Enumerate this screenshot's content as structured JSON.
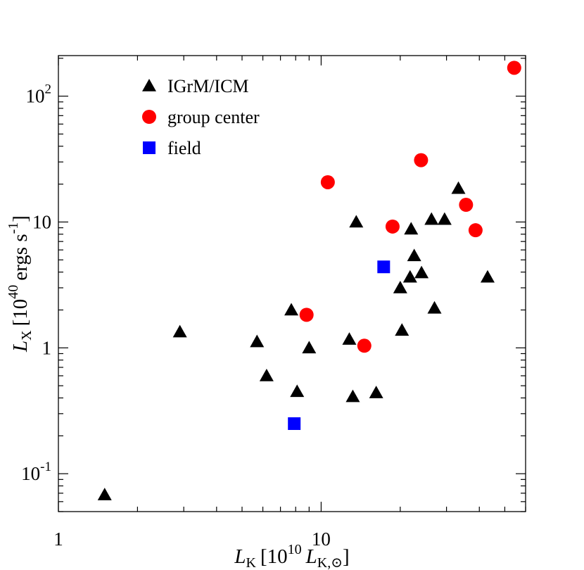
{
  "chart_data": {
    "type": "scatter",
    "title": "",
    "x_scale": "log",
    "y_scale": "log",
    "xlim": [
      1,
      60
    ],
    "ylim": [
      0.05,
      210
    ],
    "xlabel": {
      "main": "L",
      "sub": "K",
      "bracket_open": "[10",
      "exp": "10",
      "unit": "L",
      "unit_sub": "K,",
      "sun": "⊙",
      "bracket_close": "]"
    },
    "ylabel": {
      "main": "L",
      "sub": "X",
      "bracket_open": "[10",
      "exp": "40",
      "unit": "ergs s",
      "unit_exp": "-1",
      "bracket_close": "]"
    },
    "x_ticks": [
      {
        "value": 1,
        "label": "1"
      },
      {
        "value": 10,
        "label": "10"
      }
    ],
    "y_ticks": [
      {
        "value": 0.1,
        "base": "10",
        "exp": "-1",
        "label": ""
      },
      {
        "value": 1,
        "base": "",
        "exp": "",
        "label": "1"
      },
      {
        "value": 10,
        "base": "",
        "exp": "",
        "label": "10"
      },
      {
        "value": 100,
        "base": "10",
        "exp": "2",
        "label": ""
      }
    ],
    "legend_position": "top-left",
    "series": [
      {
        "name": "IGrM/ICM",
        "marker": "triangle",
        "color": "#000000",
        "points": [
          [
            1.5,
            0.068
          ],
          [
            2.9,
            1.34
          ],
          [
            5.7,
            1.12
          ],
          [
            6.2,
            0.6
          ],
          [
            7.7,
            2.0
          ],
          [
            8.1,
            0.45
          ],
          [
            9.0,
            1.0
          ],
          [
            12.8,
            1.17
          ],
          [
            13.2,
            0.41
          ],
          [
            13.6,
            10.0
          ],
          [
            16.2,
            0.44
          ],
          [
            20.0,
            3.0
          ],
          [
            20.3,
            1.38
          ],
          [
            21.8,
            3.65
          ],
          [
            22.0,
            8.8
          ],
          [
            22.6,
            5.4
          ],
          [
            24.1,
            3.95
          ],
          [
            26.3,
            10.5
          ],
          [
            27.0,
            2.07
          ],
          [
            29.5,
            10.5
          ],
          [
            33.3,
            18.5
          ],
          [
            43.0,
            3.65
          ]
        ]
      },
      {
        "name": "group center",
        "color": "#ff0000",
        "marker": "circle",
        "points": [
          [
            8.8,
            1.83
          ],
          [
            10.6,
            20.7
          ],
          [
            14.6,
            1.04
          ],
          [
            18.7,
            9.2
          ],
          [
            24.0,
            31.0
          ],
          [
            35.6,
            13.7
          ],
          [
            38.7,
            8.6
          ],
          [
            54.3,
            168.0
          ]
        ]
      },
      {
        "name": "field",
        "color": "#0000ff",
        "marker": "square",
        "points": [
          [
            7.9,
            0.25
          ],
          [
            17.3,
            4.4
          ]
        ]
      }
    ]
  }
}
